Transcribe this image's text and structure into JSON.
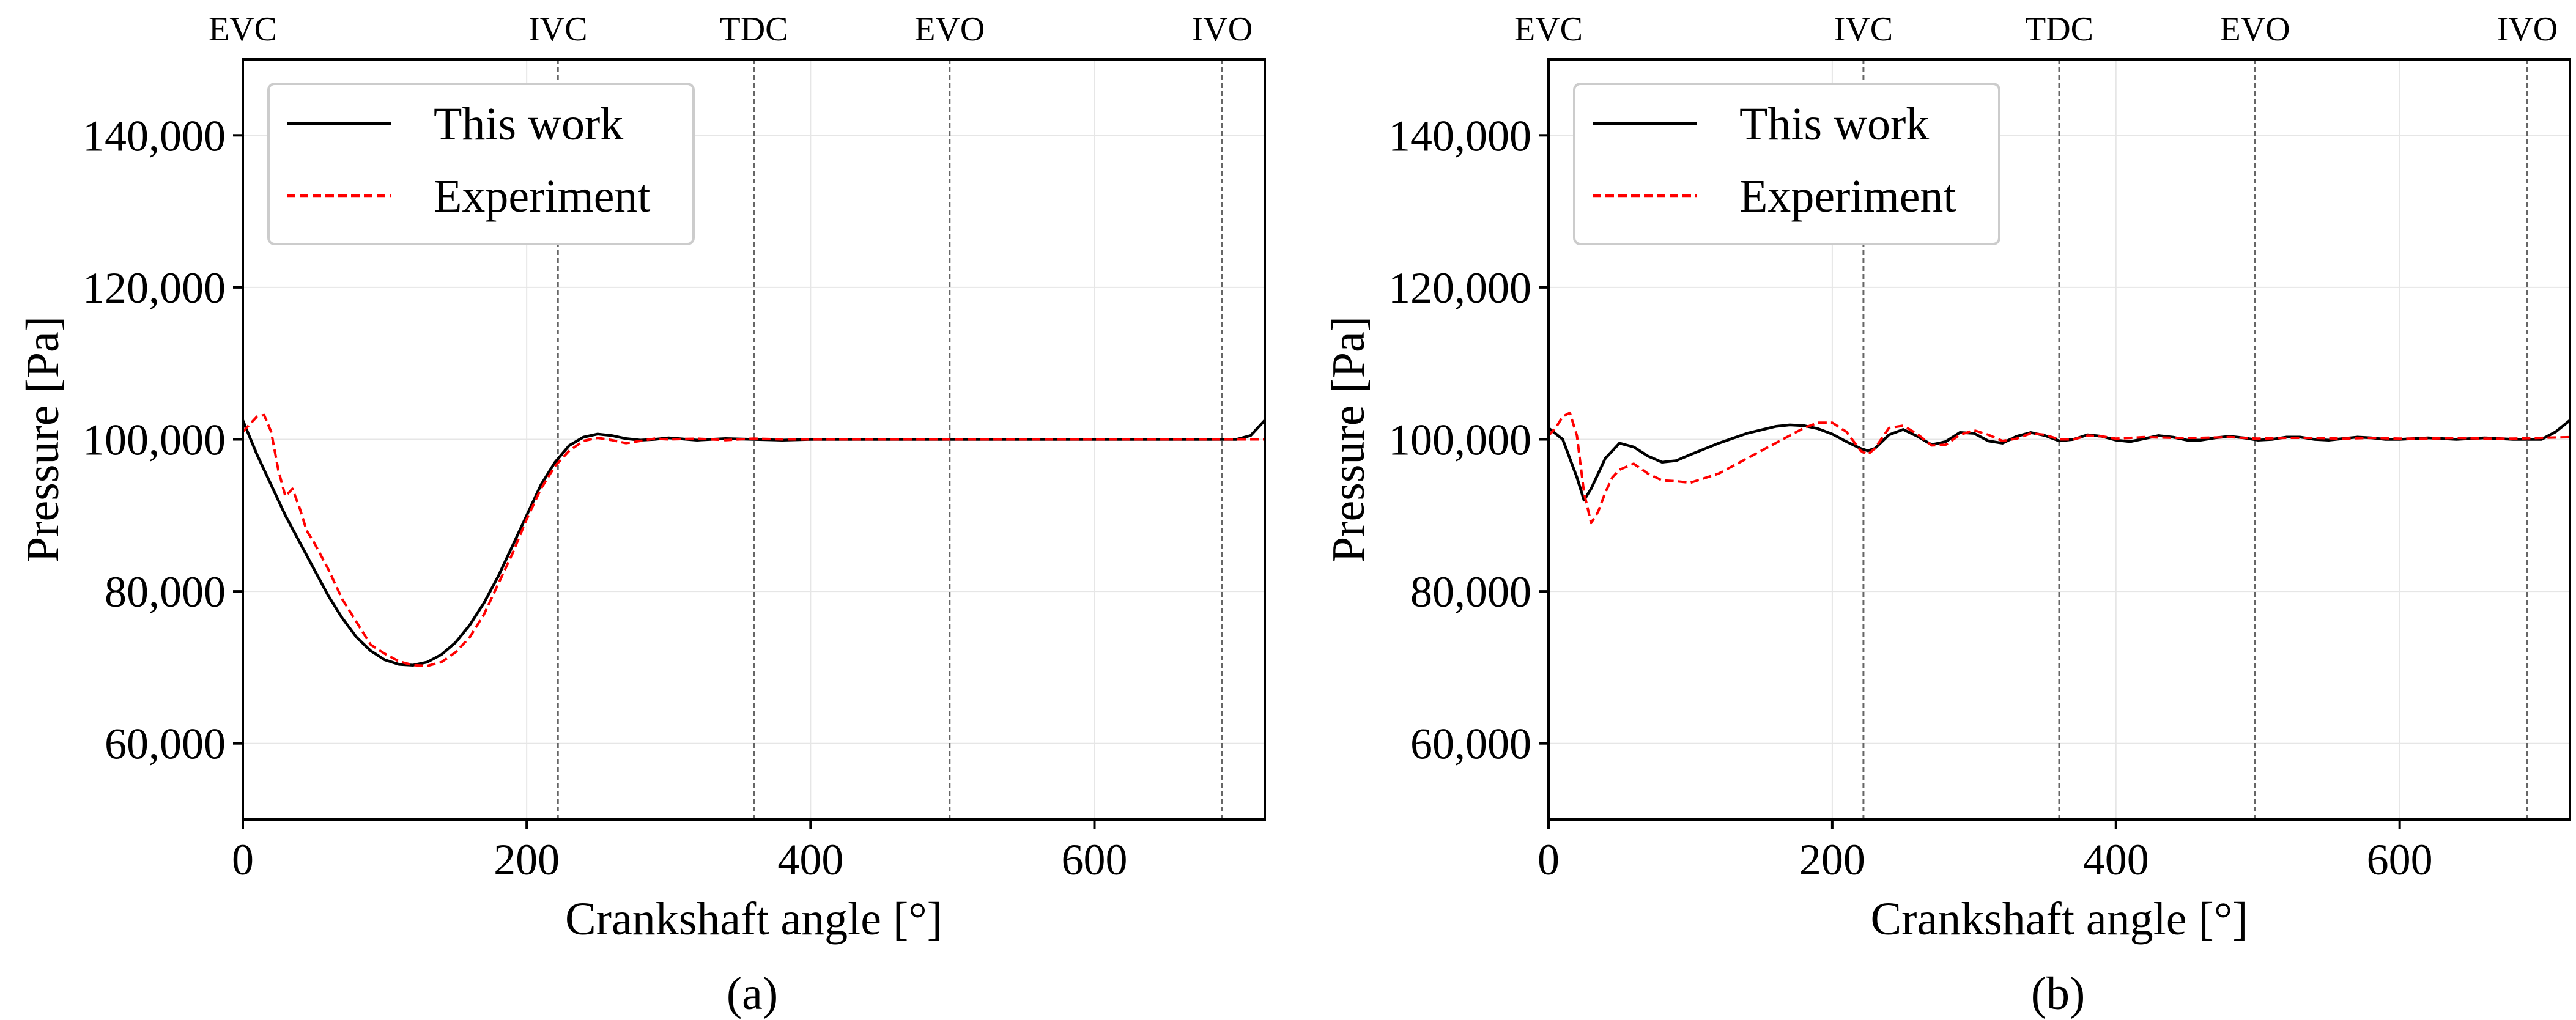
{
  "chart_data": [
    {
      "type": "line",
      "caption": "(a)",
      "xlabel": "Crankshaft angle [°]",
      "ylabel": "Pressure [Pa]",
      "xlim": [
        0,
        720
      ],
      "ylim": [
        50000,
        150000
      ],
      "xticks": [
        0,
        200,
        400,
        600
      ],
      "xtick_labels": [
        "0",
        "200",
        "400",
        "600"
      ],
      "yticks": [
        60000,
        80000,
        100000,
        120000,
        140000
      ],
      "ytick_labels": [
        "60,000",
        "80,000",
        "100,000",
        "120,000",
        "140,000"
      ],
      "grid": true,
      "legend_position": "top-left",
      "events": [
        {
          "label": "EVC",
          "angle": 0
        },
        {
          "label": "IVC",
          "angle": 222
        },
        {
          "label": "TDC",
          "angle": 360
        },
        {
          "label": "EVO",
          "angle": 498
        },
        {
          "label": "IVO",
          "angle": 690
        }
      ],
      "series": [
        {
          "name": "This work",
          "color": "#000000",
          "dash": "solid",
          "x": [
            0,
            10,
            20,
            30,
            40,
            50,
            60,
            70,
            80,
            90,
            100,
            110,
            120,
            130,
            140,
            150,
            160,
            170,
            180,
            190,
            200,
            210,
            220,
            230,
            240,
            250,
            260,
            270,
            280,
            290,
            300,
            320,
            340,
            360,
            380,
            400,
            450,
            500,
            550,
            600,
            650,
            700,
            710,
            720
          ],
          "y": [
            102500,
            98000,
            94000,
            90000,
            86500,
            83000,
            79500,
            76500,
            74000,
            72200,
            71000,
            70400,
            70300,
            70700,
            71700,
            73300,
            75600,
            78500,
            82000,
            86000,
            90000,
            94000,
            97000,
            99200,
            100300,
            100700,
            100500,
            100100,
            99900,
            100000,
            100200,
            99900,
            100100,
            100000,
            99900,
            100000,
            100000,
            100000,
            100000,
            100000,
            100000,
            100000,
            100500,
            102500
          ]
        },
        {
          "name": "Experiment",
          "color": "#ff0000",
          "dash": "dashed",
          "x": [
            0,
            5,
            10,
            15,
            20,
            25,
            30,
            35,
            40,
            45,
            50,
            60,
            70,
            80,
            90,
            100,
            110,
            120,
            130,
            140,
            150,
            160,
            170,
            180,
            190,
            200,
            210,
            220,
            230,
            240,
            250,
            260,
            270,
            280,
            290,
            300,
            320,
            340,
            360,
            380,
            400,
            450,
            500,
            550,
            600,
            650,
            700,
            720
          ],
          "y": [
            101000,
            102000,
            103000,
            103200,
            101000,
            96000,
            92500,
            93500,
            91000,
            88000,
            86500,
            83000,
            79000,
            76000,
            73000,
            71800,
            70800,
            70300,
            70200,
            70700,
            72000,
            74000,
            77000,
            81000,
            85000,
            89500,
            93500,
            96500,
            98500,
            99800,
            100200,
            99900,
            99500,
            99800,
            100100,
            100000,
            100100,
            99900,
            100100,
            100000,
            100000,
            100000,
            100000,
            100000,
            100000,
            100000,
            100000,
            100000
          ]
        }
      ]
    },
    {
      "type": "line",
      "caption": "(b)",
      "xlabel": "Crankshaft angle [°]",
      "ylabel": "Pressure [Pa]",
      "xlim": [
        0,
        720
      ],
      "ylim": [
        50000,
        150000
      ],
      "xticks": [
        0,
        200,
        400,
        600
      ],
      "xtick_labels": [
        "0",
        "200",
        "400",
        "600"
      ],
      "yticks": [
        60000,
        80000,
        100000,
        120000,
        140000
      ],
      "ytick_labels": [
        "60,000",
        "80,000",
        "100,000",
        "120,000",
        "140,000"
      ],
      "grid": true,
      "legend_position": "top-left",
      "events": [
        {
          "label": "EVC",
          "angle": 0
        },
        {
          "label": "IVC",
          "angle": 222
        },
        {
          "label": "TDC",
          "angle": 360
        },
        {
          "label": "EVO",
          "angle": 498
        },
        {
          "label": "IVO",
          "angle": 690
        }
      ],
      "series": [
        {
          "name": "This work",
          "color": "#000000",
          "dash": "solid",
          "x": [
            0,
            10,
            20,
            25,
            30,
            40,
            50,
            60,
            70,
            80,
            90,
            100,
            120,
            140,
            160,
            170,
            180,
            190,
            200,
            210,
            220,
            225,
            230,
            240,
            250,
            260,
            270,
            280,
            290,
            300,
            310,
            320,
            330,
            340,
            350,
            360,
            370,
            380,
            390,
            400,
            410,
            420,
            430,
            440,
            450,
            460,
            470,
            480,
            490,
            500,
            510,
            520,
            530,
            540,
            550,
            560,
            570,
            580,
            590,
            600,
            620,
            640,
            660,
            680,
            700,
            710,
            720
          ],
          "y": [
            101500,
            100000,
            95000,
            92000,
            93500,
            97500,
            99500,
            99000,
            97800,
            97000,
            97200,
            98000,
            99500,
            100800,
            101700,
            101900,
            101800,
            101400,
            100700,
            99700,
            98800,
            98500,
            98800,
            100600,
            101300,
            100400,
            99300,
            99700,
            100900,
            100800,
            99800,
            99500,
            100400,
            100900,
            100500,
            99800,
            100000,
            100600,
            100400,
            99900,
            99700,
            100100,
            100500,
            100300,
            99900,
            99900,
            100200,
            100400,
            100200,
            99900,
            100000,
            100300,
            100300,
            100000,
            99900,
            100100,
            100300,
            100200,
            100000,
            100000,
            100200,
            100000,
            100200,
            100000,
            100000,
            101000,
            102500
          ]
        },
        {
          "name": "Experiment",
          "color": "#ff0000",
          "dash": "dashed",
          "x": [
            0,
            5,
            10,
            15,
            20,
            25,
            30,
            35,
            40,
            45,
            50,
            60,
            70,
            80,
            90,
            100,
            120,
            140,
            160,
            180,
            190,
            200,
            210,
            220,
            225,
            230,
            240,
            250,
            260,
            270,
            280,
            290,
            300,
            310,
            320,
            330,
            340,
            350,
            360,
            370,
            380,
            390,
            400,
            420,
            440,
            460,
            480,
            500,
            520,
            540,
            560,
            580,
            600,
            620,
            640,
            660,
            680,
            700,
            720
          ],
          "y": [
            100500,
            101500,
            103000,
            103500,
            100500,
            93000,
            89000,
            90500,
            93000,
            95000,
            96000,
            96800,
            95500,
            94600,
            94500,
            94300,
            95500,
            97500,
            99500,
            101500,
            102200,
            102200,
            101000,
            98500,
            98000,
            98800,
            101500,
            101800,
            100700,
            99200,
            99300,
            100600,
            101200,
            100600,
            99800,
            100100,
            100800,
            100600,
            100000,
            100000,
            100500,
            100400,
            100100,
            100300,
            100200,
            100200,
            100300,
            100100,
            100200,
            100200,
            100100,
            100200,
            100100,
            100100,
            100200,
            100100,
            100100,
            100200,
            100300
          ]
        }
      ]
    }
  ]
}
